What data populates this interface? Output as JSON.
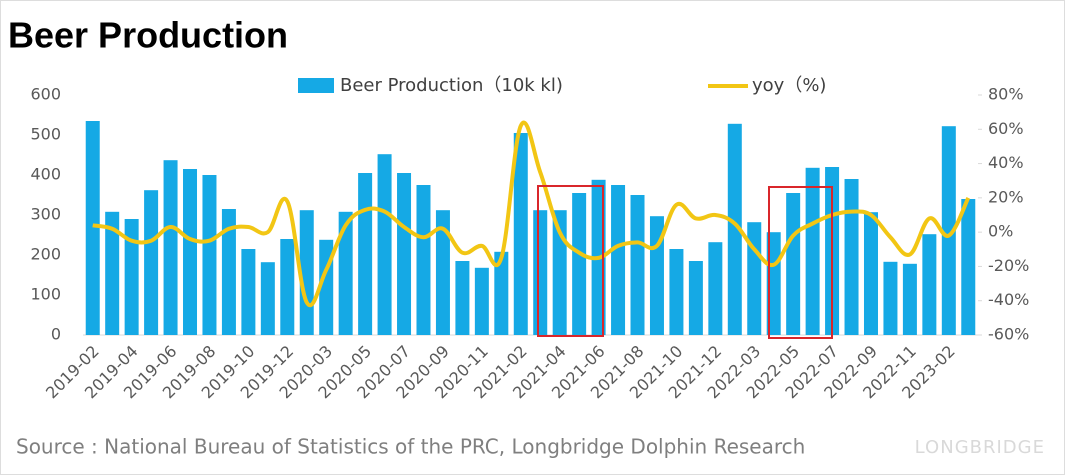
{
  "chart_data": {
    "type": "bar",
    "title": "Beer Production",
    "source": "Source : National Bureau of Statistics of the PRC, Longbridge Dolphin Research",
    "logo": "LONGBRIDGE",
    "categories": [
      "2019-02",
      null,
      "2019-04",
      null,
      "2019-06",
      null,
      "2019-08",
      null,
      "2019-10",
      null,
      "2019-12",
      null,
      "2020-03",
      null,
      "2020-05",
      null,
      "2020-07",
      null,
      "2020-09",
      null,
      "2020-11",
      null,
      "2021-02",
      null,
      "2021-04",
      null,
      "2021-06",
      null,
      "2021-08",
      null,
      "2021-10",
      null,
      "2021-12",
      null,
      "2022-03",
      null,
      "2022-05",
      null,
      "2022-07",
      null,
      "2022-09",
      null,
      "2022-11",
      null,
      "2023-02",
      null
    ],
    "series": [
      {
        "name": "Beer Production（10k kl)",
        "type": "bar",
        "color": "#15a9e5",
        "values": [
          535,
          308,
          290,
          362,
          437,
          415,
          400,
          315,
          215,
          182,
          240,
          312,
          238,
          308,
          405,
          452,
          405,
          375,
          312,
          185,
          168,
          208,
          505,
          312,
          312,
          355,
          388,
          375,
          350,
          297,
          215,
          185,
          232,
          528,
          282,
          257,
          355,
          418,
          420,
          390,
          307,
          183,
          178,
          252,
          522,
          340
        ]
      },
      {
        "name": "yoy（%)",
        "type": "line",
        "axis": "y2",
        "color": "#f2c614",
        "values": [
          4,
          2,
          -5,
          -5,
          3,
          -4,
          -5,
          2,
          3,
          0,
          18,
          -41,
          -22,
          4,
          13,
          12,
          3,
          -3,
          2,
          -12,
          -8,
          -15,
          62,
          35,
          0,
          -12,
          -15,
          -8,
          -6,
          -8,
          16,
          8,
          10,
          5,
          -10,
          -19,
          -2,
          5,
          10,
          12,
          10,
          -3,
          -13,
          8,
          -2,
          20
        ]
      }
    ],
    "ylim": [
      0,
      600
    ],
    "yticks": [
      0,
      100,
      200,
      300,
      400,
      500,
      600
    ],
    "y2lim": [
      -60,
      80
    ],
    "y2ticks": [
      {
        "value": -60,
        "label": "-60%"
      },
      {
        "value": -40,
        "label": "-40%"
      },
      {
        "value": -20,
        "label": "-20%"
      },
      {
        "value": 0,
        "label": "0%"
      },
      {
        "value": 20,
        "label": "20%"
      },
      {
        "value": 40,
        "label": "40%"
      },
      {
        "value": 60,
        "label": "60%"
      },
      {
        "value": 80,
        "label": "80%"
      }
    ],
    "grid": false
  }
}
